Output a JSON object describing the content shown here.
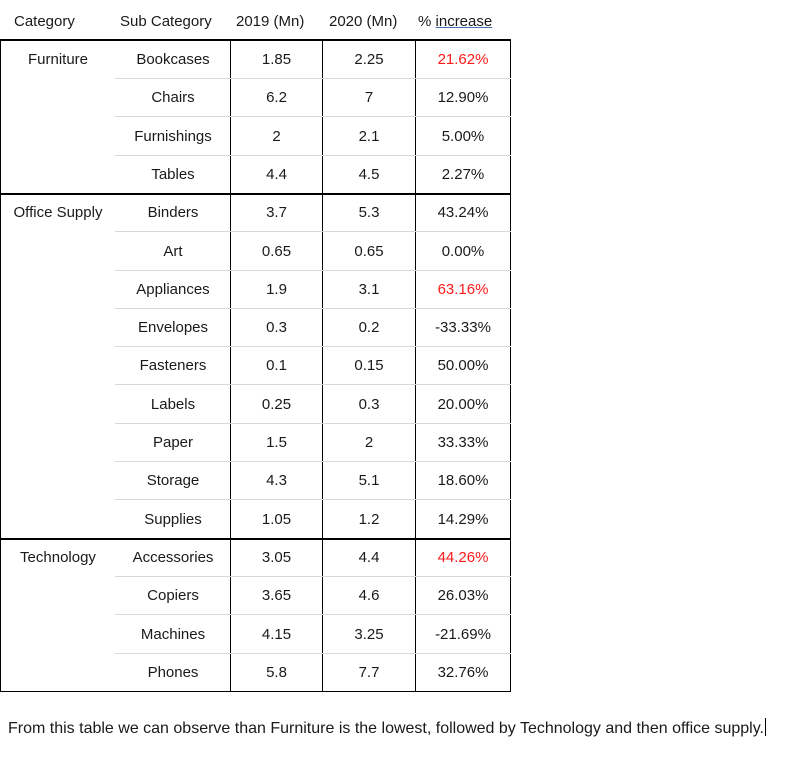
{
  "table": {
    "headers": {
      "category": "Category",
      "sub_category": "Sub Category",
      "y2019": "2019 (Mn)",
      "y2020": "2020 (Mn)",
      "increase_prefix": "%",
      "increase_word": "increase"
    },
    "rows": [
      {
        "category": "Furniture",
        "sub": "Bookcases",
        "y2019": "1.85",
        "y2020": "2.25",
        "inc": "21.62%",
        "highlight": true
      },
      {
        "category": "",
        "sub": "Chairs",
        "y2019": "6.2",
        "y2020": "7",
        "inc": "12.90%",
        "highlight": false
      },
      {
        "category": "",
        "sub": "Furnishings",
        "y2019": "2",
        "y2020": "2.1",
        "inc": "5.00%",
        "highlight": false
      },
      {
        "category": "",
        "sub": "Tables",
        "y2019": "4.4",
        "y2020": "4.5",
        "inc": "2.27%",
        "highlight": false
      },
      {
        "category": "Office Supply",
        "sub": "Binders",
        "y2019": "3.7",
        "y2020": "5.3",
        "inc": "43.24%",
        "highlight": false
      },
      {
        "category": "",
        "sub": "Art",
        "y2019": "0.65",
        "y2020": "0.65",
        "inc": "0.00%",
        "highlight": false
      },
      {
        "category": "",
        "sub": "Appliances",
        "y2019": "1.9",
        "y2020": "3.1",
        "inc": "63.16%",
        "highlight": true
      },
      {
        "category": "",
        "sub": "Envelopes",
        "y2019": "0.3",
        "y2020": "0.2",
        "inc": "-33.33%",
        "highlight": false
      },
      {
        "category": "",
        "sub": "Fasteners",
        "y2019": "0.1",
        "y2020": "0.15",
        "inc": "50.00%",
        "highlight": false
      },
      {
        "category": "",
        "sub": "Labels",
        "y2019": "0.25",
        "y2020": "0.3",
        "inc": "20.00%",
        "highlight": false
      },
      {
        "category": "",
        "sub": "Paper",
        "y2019": "1.5",
        "y2020": "2",
        "inc": "33.33%",
        "highlight": false
      },
      {
        "category": "",
        "sub": "Storage",
        "y2019": "4.3",
        "y2020": "5.1",
        "inc": "18.60%",
        "highlight": false
      },
      {
        "category": "",
        "sub": "Supplies",
        "y2019": "1.05",
        "y2020": "1.2",
        "inc": "14.29%",
        "highlight": false
      },
      {
        "category": "Technology",
        "sub": "Accessories",
        "y2019": "3.05",
        "y2020": "4.4",
        "inc": "44.26%",
        "highlight": true
      },
      {
        "category": "",
        "sub": "Copiers",
        "y2019": "3.65",
        "y2020": "4.6",
        "inc": "26.03%",
        "highlight": false
      },
      {
        "category": "",
        "sub": "Machines",
        "y2019": "4.15",
        "y2020": "3.25",
        "inc": "-21.69%",
        "highlight": false
      },
      {
        "category": "",
        "sub": "Phones",
        "y2019": "5.8",
        "y2020": "7.7",
        "inc": "32.76%",
        "highlight": false
      }
    ]
  },
  "note": {
    "text": "From this table we can observe than Furniture is the lowest, followed by Technology and then office supply."
  },
  "colors": {
    "highlight": "#ff1a1a",
    "text": "#1a1a1a"
  }
}
